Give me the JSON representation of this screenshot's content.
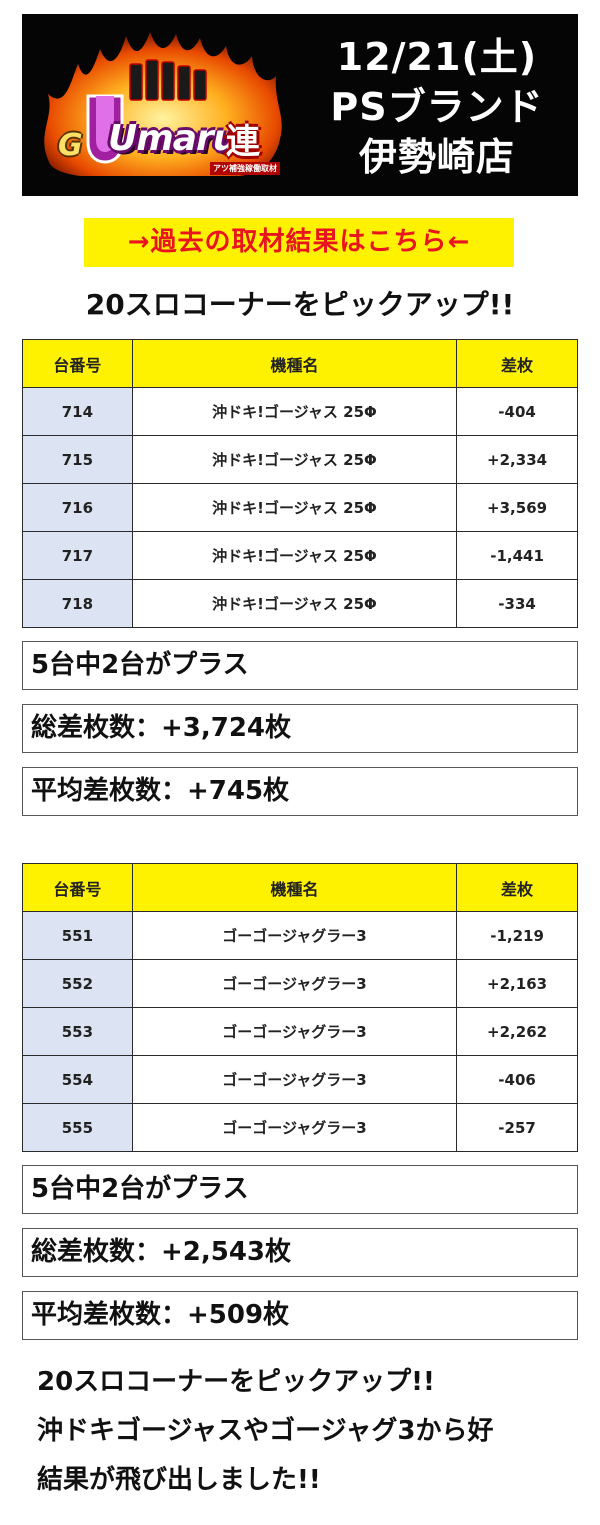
{
  "header": {
    "logo": {
      "g": "G",
      "word": "Umaru",
      "ren": "連",
      "sub": "アツ補強稼働取材"
    },
    "date": "12/21(土)",
    "brand": "PSブランド",
    "store": "伊勢崎店"
  },
  "past_link": "→過去の取材結果はこちら←",
  "pickup_title": "20スロコーナーをピックアップ!!",
  "table_headers": {
    "number": "台番号",
    "model": "機種名",
    "diff": "差枚"
  },
  "sections": [
    {
      "rows": [
        {
          "number": "714",
          "model": "沖ドキ!ゴージャス 25Φ",
          "diff": "-404"
        },
        {
          "number": "715",
          "model": "沖ドキ!ゴージャス 25Φ",
          "diff": "+2,334"
        },
        {
          "number": "716",
          "model": "沖ドキ!ゴージャス 25Φ",
          "diff": "+3,569"
        },
        {
          "number": "717",
          "model": "沖ドキ!ゴージャス 25Φ",
          "diff": "-1,441"
        },
        {
          "number": "718",
          "model": "沖ドキ!ゴージャス 25Φ",
          "diff": "-334"
        }
      ],
      "plus_count": "5台中2台がプラス",
      "total": "総差枚数：+3,724枚",
      "average": "平均差枚数：+745枚"
    },
    {
      "rows": [
        {
          "number": "551",
          "model": "ゴーゴージャグラー3",
          "diff": "-1,219"
        },
        {
          "number": "552",
          "model": "ゴーゴージャグラー3",
          "diff": "+2,163"
        },
        {
          "number": "553",
          "model": "ゴーゴージャグラー3",
          "diff": "+2,262"
        },
        {
          "number": "554",
          "model": "ゴーゴージャグラー3",
          "diff": "-406"
        },
        {
          "number": "555",
          "model": "ゴーゴージャグラー3",
          "diff": "-257"
        }
      ],
      "plus_count": "5台中2台がプラス",
      "total": "総差枚数：+2,543枚",
      "average": "平均差枚数：+509枚"
    }
  ],
  "footer": {
    "line1": "20スロコーナーをピックアップ!!",
    "line2": "沖ドキゴージャスやゴージャグ3から好",
    "line3": "結果が飛び出しました!!"
  },
  "colors": {
    "yellow": "#fff200",
    "link_red": "#e8141e",
    "number_cell": "#dce3f2",
    "header_bg": "#050505"
  }
}
